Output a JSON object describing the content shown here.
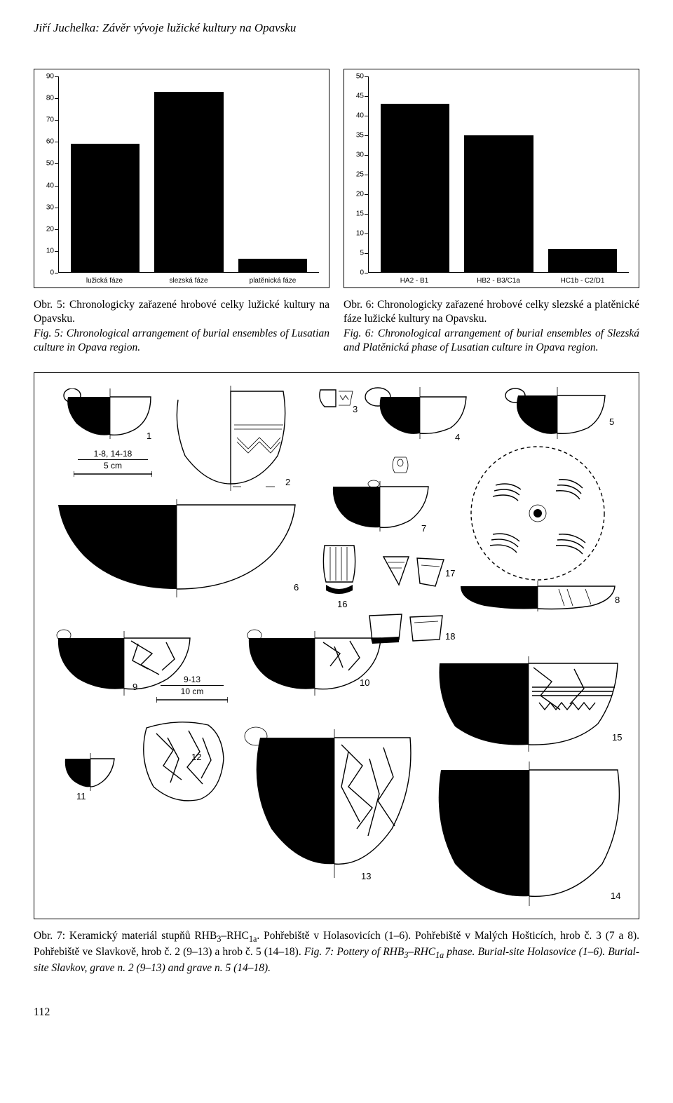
{
  "running_head": "Jiří Juchelka: Závěr vývoje lužické kultury na Opavsku",
  "page_number": "112",
  "chart5": {
    "type": "bar",
    "ylim": [
      0,
      90
    ],
    "ytick_step": 10,
    "yticks": [
      0,
      10,
      20,
      30,
      40,
      50,
      60,
      70,
      80,
      90
    ],
    "categories": [
      "lužická fáze",
      "slezská fáze",
      "platěnická fáze"
    ],
    "values": [
      59,
      83,
      6
    ],
    "bar_color": "#000000",
    "background_color": "#ffffff",
    "axis_color": "#000000",
    "font_family": "Arial",
    "label_fontsize": 10
  },
  "chart6": {
    "type": "bar",
    "ylim": [
      0,
      50
    ],
    "ytick_step": 5,
    "yticks": [
      0,
      5,
      10,
      15,
      20,
      25,
      30,
      35,
      40,
      45,
      50
    ],
    "categories": [
      "HA2 - B1",
      "HB2 - B3/C1a",
      "HC1b - C2/D1"
    ],
    "values": [
      43,
      35,
      6
    ],
    "bar_color": "#000000",
    "background_color": "#ffffff",
    "axis_color": "#000000",
    "font_family": "Arial",
    "label_fontsize": 10
  },
  "caption5": {
    "cs_label": "Obr. 5:",
    "cs_text": " Chronologicky zařazené hrobové celky lužické kultury na Opavsku.",
    "en_label": "Fig. 5:",
    "en_text": " Chronological arrangement of burial ensembles of Lusatian culture in Opava region."
  },
  "caption6": {
    "cs_label": "Obr. 6:",
    "cs_text": " Chronologicky zařazené hrobové celky slezské a platěnické fáze lužické kultury na Opavsku.",
    "en_label": "Fig. 6:",
    "en_text": " Chronological arrangement of burial ensembles of Slezská and Platěnická phase of Lusatian culture in Opava region."
  },
  "figure7": {
    "scale1_top": "1-8, 14-18",
    "scale1_bottom": "5 cm",
    "scale2_top": "9-13",
    "scale2_bottom": "10 cm",
    "item_numbers": [
      "1",
      "2",
      "3",
      "4",
      "5",
      "6",
      "7",
      "8",
      "9",
      "10",
      "11",
      "12",
      "13",
      "14",
      "15",
      "16",
      "17",
      "18"
    ]
  },
  "caption7": {
    "cs_a": "Obr. 7: Keramický materiál stupňů RHB",
    "cs_b": "–RHC",
    "cs_c": ". Pohřebiště v Holasovicích (1–6). Pohřebiště v Malých Hošticích, hrob č. 3 (7 a 8). Pohřebiště ve Slavkově, hrob č. 2 (9–13) a hrob č. 5 (14–18). ",
    "sub1": "3",
    "sub2": "1a",
    "en_a": "Fig. 7: Pottery of RHB",
    "en_b": "–RHC",
    "en_c": " phase. Burial-site Holasovice (1–6). Burial-site Slavkov, grave n. 2 (9–13) and grave n. 5 (14–18)."
  }
}
